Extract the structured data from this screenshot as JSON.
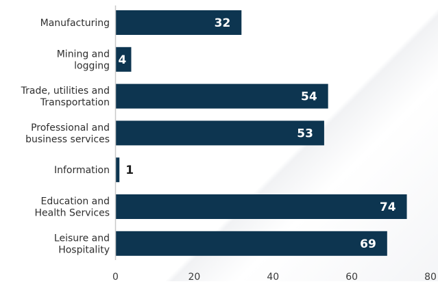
{
  "chart_data": {
    "type": "bar",
    "orientation": "horizontal",
    "categories": [
      [
        "Manufacturing"
      ],
      [
        "Mining and",
        "logging"
      ],
      [
        "Trade, utilities and",
        "Transportation"
      ],
      [
        "Professional and",
        "business services"
      ],
      [
        "Information"
      ],
      [
        "Education and",
        "Health Services"
      ],
      [
        "Leisure and",
        "Hospitality"
      ]
    ],
    "values": [
      32,
      4,
      54,
      53,
      1,
      74,
      69
    ],
    "data_labels": [
      "32",
      "4",
      "54",
      "53",
      "1",
      "74",
      "69"
    ],
    "xlim": [
      0,
      80
    ],
    "x_ticks": [
      0,
      20,
      40,
      60,
      80
    ],
    "x_tick_labels": [
      "0",
      "20",
      "40",
      "60",
      "80"
    ],
    "grid": false,
    "legend": "none",
    "title": "",
    "xlabel": "",
    "ylabel": ""
  },
  "colors": {
    "bar": "#0d3550",
    "axis": "#c8c8c8",
    "label_inside": "#ffffff",
    "label_outside": "#1f1f1f"
  }
}
